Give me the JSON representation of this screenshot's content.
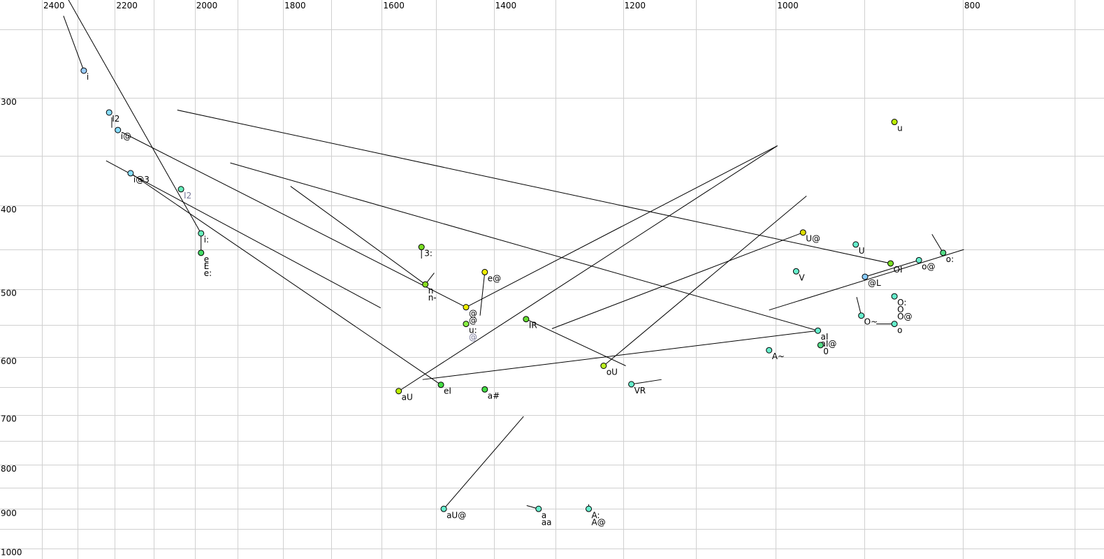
{
  "chart_data": {
    "type": "scatter",
    "title": "",
    "xlabel": "",
    "ylabel": "",
    "x_axis": {
      "scale": "log",
      "reversed": true,
      "range": [
        2523,
        676
      ],
      "tick_labels": [
        2400,
        2200,
        2000,
        1800,
        1600,
        1400,
        1200,
        1000,
        800
      ],
      "gridlines": [
        2400,
        2300,
        2200,
        2100,
        2000,
        1900,
        1800,
        1700,
        1600,
        1500,
        1400,
        1300,
        1200,
        1100,
        1000,
        900,
        800,
        700
      ]
    },
    "y_axis": {
      "scale": "log",
      "reversed": false,
      "range": [
        231,
        1029
      ],
      "tick_labels": [
        300,
        400,
        500,
        600,
        700,
        800,
        900,
        1000
      ],
      "gridlines": [
        250,
        300,
        350,
        400,
        450,
        500,
        550,
        600,
        650,
        700,
        750,
        800,
        850,
        900,
        950,
        1000
      ]
    },
    "grid": true,
    "points": [
      {
        "labels": [
          "i"
        ],
        "f2": 2283,
        "f1": 279,
        "color": "#99ccff"
      },
      {
        "labels": [
          "I2"
        ],
        "f2": 2215,
        "f1": 312,
        "color": "#88ddff"
      },
      {
        "labels": [
          "i@"
        ],
        "f2": 2192,
        "f1": 327,
        "color": "#88ddff"
      },
      {
        "labels": [
          "i@3"
        ],
        "f2": 2159,
        "f1": 367,
        "color": "#88ddff"
      },
      {
        "labels": [],
        "grey_labels": [
          "I2"
        ],
        "f2": 2033,
        "f1": 383,
        "color": "#66eebb"
      },
      {
        "labels": [
          "i:"
        ],
        "f2": 1985,
        "f1": 431,
        "color": "#66eebb"
      },
      {
        "labels": [
          "e",
          "E",
          "e:"
        ],
        "f2": 1985,
        "f1": 454,
        "color": "#44dd66"
      },
      {
        "labels": [
          "3:"
        ],
        "f2": 1526,
        "f1": 447,
        "color": "#77dd22"
      },
      {
        "labels": [
          "n",
          "n-"
        ],
        "f2": 1519,
        "f1": 494,
        "color": "#88dd22"
      },
      {
        "labels": [
          "@",
          "@"
        ],
        "f2": 1447,
        "f1": 525,
        "color": "#eeee00"
      },
      {
        "labels": [
          "u:"
        ],
        "grey_labels": [
          "@"
        ],
        "f2": 1447,
        "f1": 549,
        "color": "#88ee44"
      },
      {
        "labels": [
          "e@"
        ],
        "f2": 1415,
        "f1": 478,
        "color": "#eeee00"
      },
      {
        "labels": [
          "IR"
        ],
        "f2": 1347,
        "f1": 542,
        "color": "#66dd33"
      },
      {
        "labels": [
          "aU"
        ],
        "f2": 1568,
        "f1": 657,
        "color": "#bbee00"
      },
      {
        "labels": [
          "eI"
        ],
        "f2": 1491,
        "f1": 646,
        "color": "#44dd44"
      },
      {
        "labels": [
          "a#"
        ],
        "f2": 1415,
        "f1": 654,
        "color": "#44dd44"
      },
      {
        "labels": [
          "oU"
        ],
        "f2": 1228,
        "f1": 614,
        "color": "#bbee22"
      },
      {
        "labels": [
          "VR"
        ],
        "f2": 1188,
        "f1": 645,
        "color": "#66eecc"
      },
      {
        "labels": [
          "aU@"
        ],
        "f2": 1486,
        "f1": 900,
        "color": "#66eecc"
      },
      {
        "labels": [
          "a",
          "aa"
        ],
        "f2": 1327,
        "f1": 900,
        "color": "#66eecc"
      },
      {
        "labels": [
          "A:",
          "A@"
        ],
        "f2": 1250,
        "f1": 900,
        "color": "#66eecc"
      },
      {
        "labels": [
          "u"
        ],
        "f2": 868,
        "f1": 320,
        "color": "#bbee00"
      },
      {
        "labels": [
          "U@"
        ],
        "f2": 968,
        "f1": 430,
        "color": "#dddd00"
      },
      {
        "labels": [
          "U"
        ],
        "f2": 909,
        "f1": 444,
        "color": "#66eecc"
      },
      {
        "labels": [
          "V"
        ],
        "f2": 976,
        "f1": 477,
        "color": "#66eecc"
      },
      {
        "labels": [
          "OI"
        ],
        "f2": 872,
        "f1": 467,
        "color": "#77dd22"
      },
      {
        "labels": [
          "o@"
        ],
        "f2": 843,
        "f1": 463,
        "color": "#66eecc"
      },
      {
        "labels": [
          "o:"
        ],
        "f2": 819,
        "f1": 454,
        "color": "#55dd88"
      },
      {
        "labels": [
          "@L"
        ],
        "f2": 899,
        "f1": 484,
        "color": "#88ccff"
      },
      {
        "labels": [
          "O:",
          "O",
          "O@"
        ],
        "f2": 868,
        "f1": 510,
        "color": "#66eecc"
      },
      {
        "labels": [
          "O~"
        ],
        "f2": 903,
        "f1": 537,
        "color": "#66eecc"
      },
      {
        "labels": [
          "o"
        ],
        "f2": 868,
        "f1": 549,
        "color": "#66eecc"
      },
      {
        "labels": [
          "aI",
          "aI@"
        ],
        "f2": 951,
        "f1": 559,
        "color": "#66eecc"
      },
      {
        "labels": [
          "0"
        ],
        "f2": 948,
        "f1": 581,
        "color": "#55dd88"
      },
      {
        "labels": [
          "A~"
        ],
        "f2": 1008,
        "f1": 589,
        "color": "#66eecc"
      }
    ],
    "trajectories": [
      [
        [
          2339,
          241
        ],
        [
          2283,
          279
        ]
      ],
      [
        [
          2325,
          231
        ],
        [
          1985,
          431
        ]
      ],
      [
        [
          2208,
          316
        ],
        [
          2208,
          325
        ]
      ],
      [
        [
          2181,
          329
        ],
        [
          1447,
          525
        ]
      ],
      [
        [
          1447,
          525
        ],
        [
          998,
          341
        ]
      ],
      [
        [
          2223,
          355
        ],
        [
          1602,
          526
        ]
      ],
      [
        [
          2159,
          367
        ],
        [
          1491,
          646
        ]
      ],
      [
        [
          1784,
          380
        ],
        [
          1519,
          494
        ]
      ],
      [
        [
          1519,
          494
        ],
        [
          1503,
          479
        ]
      ],
      [
        [
          1985,
          431
        ],
        [
          1985,
          454
        ]
      ],
      [
        [
          1526,
          447
        ],
        [
          1526,
          461
        ]
      ],
      [
        [
          2042,
          310
        ],
        [
          872,
          467
        ]
      ],
      [
        [
          1917,
          357
        ],
        [
          951,
          559
        ]
      ],
      [
        [
          1415,
          478
        ],
        [
          1423,
          537
        ]
      ],
      [
        [
          1568,
          657
        ],
        [
          998,
          341
        ]
      ],
      [
        [
          1347,
          542
        ],
        [
          1196,
          614
        ]
      ],
      [
        [
          1306,
          556
        ],
        [
          968,
          430
        ]
      ],
      [
        [
          1228,
          614
        ],
        [
          964,
          390
        ]
      ],
      [
        [
          1524,
          637
        ],
        [
          951,
          559
        ]
      ],
      [
        [
          1188,
          645
        ],
        [
          1146,
          637
        ]
      ],
      [
        [
          1486,
          900
        ],
        [
          1351,
          703
        ]
      ],
      [
        [
          1327,
          900
        ],
        [
          1346,
          892
        ]
      ],
      [
        [
          1250,
          900
        ],
        [
          1250,
          889
        ]
      ],
      [
        [
          1008,
          529
        ],
        [
          799,
          450
        ]
      ],
      [
        [
          899,
          484
        ],
        [
          843,
          463
        ]
      ],
      [
        [
          830,
          432
        ],
        [
          819,
          454
        ]
      ],
      [
        [
          908,
          511
        ],
        [
          903,
          537
        ]
      ],
      [
        [
          887,
          549
        ],
        [
          868,
          549
        ]
      ]
    ]
  }
}
